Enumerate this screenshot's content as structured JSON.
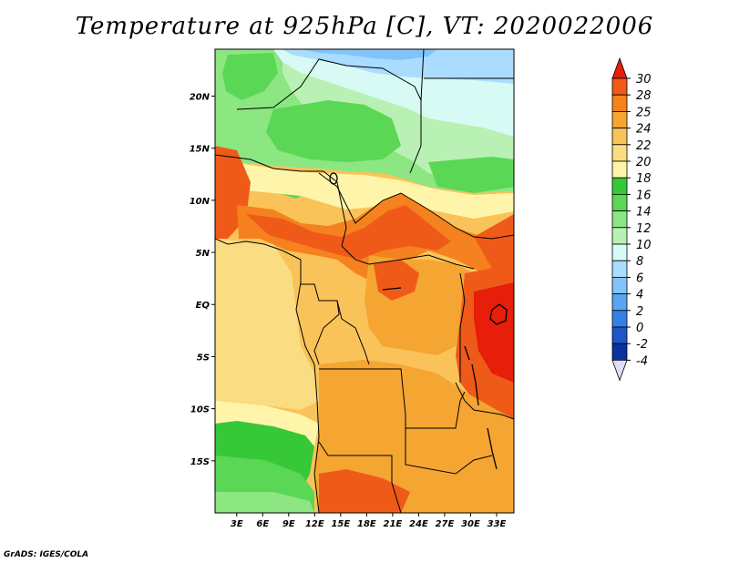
{
  "title": "Temperature at 925hPa [C], VT: 2020022006",
  "credit": "GrADS: IGES/COLA",
  "axes": {
    "lat_labels": [
      "20N",
      "15N",
      "10N",
      "5N",
      "EQ",
      "5S",
      "10S",
      "15S"
    ],
    "lat_values": [
      20,
      15,
      10,
      5,
      0,
      -5,
      -10,
      -15
    ],
    "lon_labels": [
      "3E",
      "6E",
      "9E",
      "12E",
      "15E",
      "18E",
      "21E",
      "24E",
      "27E",
      "30E",
      "33E"
    ],
    "lon_values": [
      3,
      6,
      9,
      12,
      15,
      18,
      21,
      24,
      27,
      30,
      33
    ],
    "lat_range": [
      -20,
      24.5
    ],
    "lon_range": [
      0.5,
      35
    ]
  },
  "colorbar": {
    "labels": [
      "30",
      "28",
      "25",
      "24",
      "22",
      "20",
      "18",
      "16",
      "14",
      "12",
      "10",
      "8",
      "6",
      "4",
      "2",
      "0",
      "-2",
      "-4"
    ],
    "colors": [
      "#e61e0a",
      "#f05a19",
      "#f5821e",
      "#f5a532",
      "#fac35a",
      "#fadc82",
      "#fff5aa",
      "#37c837",
      "#5ad755",
      "#8ce682",
      "#b9f0b4",
      "#d7faf5",
      "#aadcff",
      "#82c3fa",
      "#5aa5f0",
      "#3282e6",
      "#1e55c8",
      "#0a32a0"
    ],
    "top_color": "#e61e0a",
    "bottom_color": "#e1dcfa",
    "bottom_tri_color": "#000a78"
  },
  "colors": {
    "red": "#e61e0a",
    "orange_red": "#f05a19",
    "orange": "#f5821e",
    "amber": "#f5a532",
    "light_orange": "#fac35a",
    "pale_orange": "#fadc82",
    "cream": "#fff5aa",
    "green": "#37c837",
    "mid_green": "#5ad755",
    "light_green": "#8ce682",
    "pale_green": "#b9f0b4",
    "pale_cyan": "#d7faf5",
    "light_blue": "#aadcff",
    "blue": "#82c3fa"
  }
}
